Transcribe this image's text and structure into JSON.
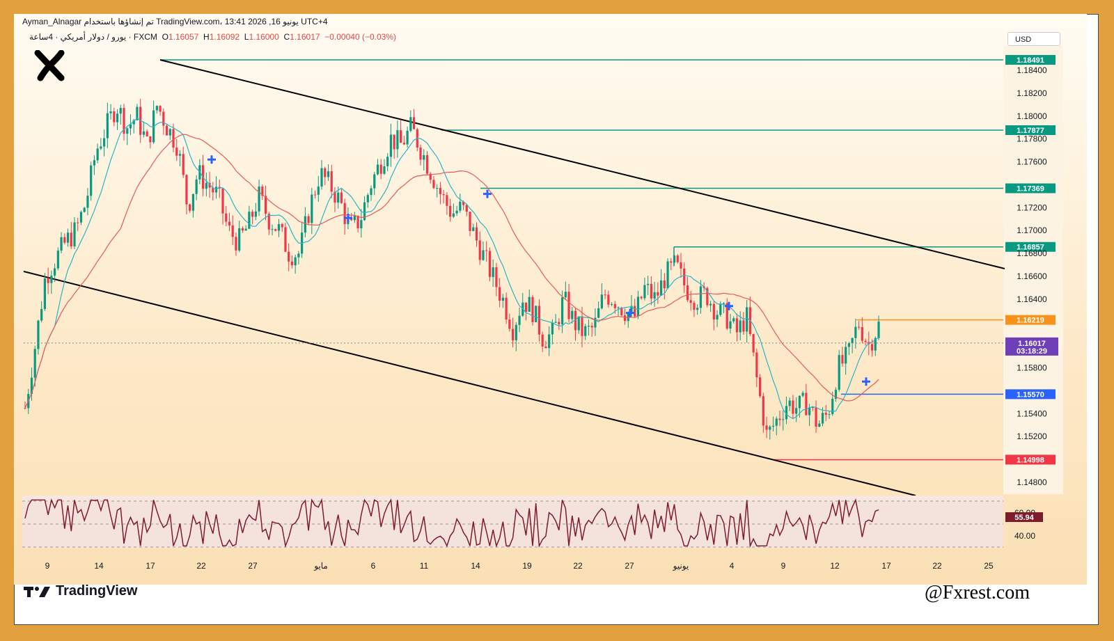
{
  "header": {
    "author_line": "Ayman_Alnagar تم إنشاؤها باستخدام TradingView.com، 13:41 2026 ,16 يونيو UTC+4",
    "symbol": "يورو / دولار أمريكي · 4ساعة · FXCM",
    "open_label": "O",
    "open": "1.16057",
    "high_label": "H",
    "high": "1.16092",
    "low_label": "L",
    "low": "1.16000",
    "close_label": "C",
    "close": "1.16017",
    "change": "−0.00040 (−0.03%)"
  },
  "currency_button": "USD",
  "brand": "TradingView",
  "watermark": "@Fxrest.com",
  "chart_data": {
    "type": "candlestick",
    "symbol": "EUR/USD",
    "timeframe": "4h",
    "ylim": [
      1.147,
      1.1865
    ],
    "y_ticks": [
      "1.18400",
      "1.18200",
      "1.18000",
      "1.17800",
      "1.17600",
      "1.17200",
      "1.17000",
      "1.16800",
      "1.16600",
      "1.16400",
      "1.15800",
      "1.15400",
      "1.15200",
      "1.14800"
    ],
    "x_ticks": [
      "9",
      "14",
      "17",
      "22",
      "27",
      "مايو",
      "6",
      "11",
      "14",
      "19",
      "22",
      "27",
      "يونيو",
      "4",
      "9",
      "12",
      "17",
      "22",
      "25"
    ],
    "price_levels": [
      {
        "value": 1.18491,
        "label": "1.18491",
        "color": "#089981"
      },
      {
        "value": 1.17877,
        "label": "1.17877",
        "color": "#089981"
      },
      {
        "value": 1.17369,
        "label": "1.17369",
        "color": "#089981"
      },
      {
        "value": 1.16857,
        "label": "1.16857",
        "color": "#089981"
      },
      {
        "value": 1.16219,
        "label": "1.16219",
        "color": "#f7931a"
      },
      {
        "value": 1.1557,
        "label": "1.15570",
        "color": "#2962ff"
      },
      {
        "value": 1.14998,
        "label": "1.14998",
        "color": "#f23645"
      }
    ],
    "current_price": {
      "value": 1.16017,
      "label": "1.16017",
      "countdown": "03:18:29",
      "color": "#6f3fb8"
    },
    "close_path": [
      1.1545,
      1.16,
      1.166,
      1.1675,
      1.169,
      1.17,
      1.1725,
      1.177,
      1.179,
      1.181,
      1.179,
      1.18,
      1.1775,
      1.181,
      1.179,
      1.1775,
      1.172,
      1.175,
      1.174,
      1.173,
      1.17,
      1.169,
      1.1705,
      1.173,
      1.171,
      1.17,
      1.168,
      1.168,
      1.172,
      1.175,
      1.174,
      1.1725,
      1.17,
      1.171,
      1.174,
      1.176,
      1.178,
      1.1775,
      1.179,
      1.177,
      1.175,
      1.173,
      1.1715,
      1.172,
      1.17,
      1.168,
      1.166,
      1.164,
      1.1615,
      1.164,
      1.163,
      1.1605,
      1.161,
      1.164,
      1.162,
      1.161,
      1.1615,
      1.1645,
      1.164,
      1.163,
      1.1625,
      1.165,
      1.164,
      1.166,
      1.167,
      1.165,
      1.164,
      1.1645,
      1.163,
      1.1625,
      1.161,
      1.1625,
      1.157,
      1.152,
      1.1535,
      1.155,
      1.1545,
      1.155,
      1.153,
      1.154,
      1.158,
      1.159,
      1.162,
      1.16,
      1.1617
    ],
    "rsi": {
      "value": "55.94",
      "levels": [
        "60.00",
        "40.00"
      ],
      "color": "#7d1c2b"
    }
  }
}
